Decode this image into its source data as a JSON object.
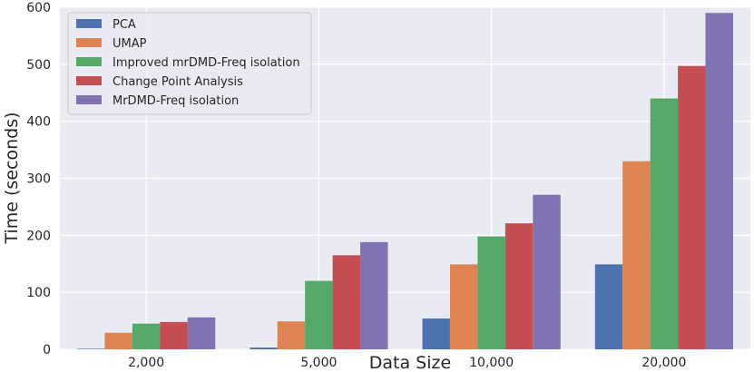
{
  "chart_data": {
    "type": "bar",
    "title": "",
    "xlabel": "Data Size",
    "ylabel": "Time (seconds)",
    "categories": [
      "2,000",
      "5,000",
      "10,000",
      "20,000"
    ],
    "ylim": [
      0,
      600
    ],
    "yticks": [
      0,
      100,
      200,
      300,
      400,
      500,
      600
    ],
    "grid": true,
    "legend_position": "top-left",
    "series": [
      {
        "name": "PCA",
        "color": "#4c72b0",
        "values": [
          1,
          3,
          54,
          149
        ]
      },
      {
        "name": "UMAP",
        "color": "#dd8452",
        "values": [
          29,
          49,
          149,
          330
        ]
      },
      {
        "name": "Improved mrDMD-Freq isolation",
        "color": "#55a868",
        "values": [
          45,
          120,
          198,
          440
        ]
      },
      {
        "name": "Change Point Analysis",
        "color": "#c44e52",
        "values": [
          48,
          165,
          221,
          497
        ]
      },
      {
        "name": "MrDMD-Freq isolation",
        "color": "#8172b3",
        "values": [
          56,
          188,
          271,
          590
        ]
      }
    ]
  }
}
